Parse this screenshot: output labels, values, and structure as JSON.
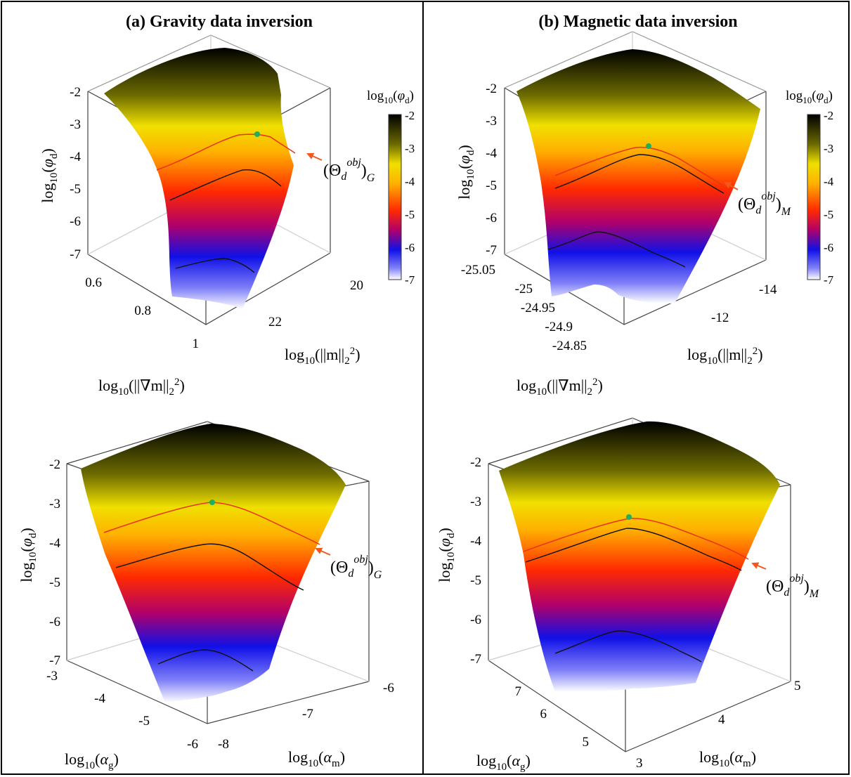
{
  "panels": [
    {
      "title": "(a) Gravity data inversion"
    },
    {
      "title": "(b) Magnetic data inversion"
    }
  ],
  "colors": {
    "frame": "#000000",
    "target_line": "#e8341c",
    "contour": "#111111",
    "marker": "#1fae62",
    "arrow": "#f25a1c"
  },
  "chart_data": [
    {
      "type": "surface",
      "panel": "(a)",
      "zlabel": "log10(φd)",
      "xlabel": "log10(||∇m||₂²)",
      "ylabel": "log10(||m||₂²)",
      "zticks": [
        "-2",
        "-3",
        "-4",
        "-5",
        "-6",
        "-7"
      ],
      "xticks": [
        "0.6",
        "0.8",
        "1"
      ],
      "yticks": [
        "20",
        "22"
      ],
      "zlim": [
        -7,
        -2
      ],
      "colorbar": {
        "label": "log10(φd)",
        "ticks": [
          "-2",
          "-3",
          "-4",
          "-5",
          "-6",
          "-7"
        ],
        "colormap": "white-blue-red-yellow-black"
      },
      "annotation": "(Θd^obj)G",
      "target_contour": -3.4,
      "black_contours": [
        -4.3,
        -6.5
      ],
      "optimum_point": {
        "z": -3.3
      }
    },
    {
      "type": "surface",
      "panel": "(b)",
      "zlabel": "log10(φd)",
      "xlabel": "log10(||∇m||₂²)",
      "ylabel": "log10(||m||₂²)",
      "zticks": [
        "-2",
        "-3",
        "-4",
        "-5",
        "-6",
        "-7"
      ],
      "xticks": [
        "-25.05",
        "-25",
        "-24.95",
        "-24.9",
        "-24.85"
      ],
      "yticks": [
        "-14",
        "-12"
      ],
      "zlim": [
        -7,
        -2
      ],
      "colorbar": {
        "label": "log10(φd)",
        "ticks": [
          "-2",
          "-3",
          "-4",
          "-5",
          "-6",
          "-7"
        ],
        "colormap": "white-blue-red-yellow-black"
      },
      "annotation": "(Θd^obj)M",
      "target_contour": -3.9,
      "black_contours": [
        -4.2,
        -6.4
      ],
      "optimum_point": {
        "z": -3.8
      }
    },
    {
      "type": "surface",
      "panel": "(a)",
      "zlabel": "log10(φd)",
      "xlabel": "log10(αg)",
      "ylabel": "log10(αm)",
      "zticks": [
        "-2",
        "-3",
        "-4",
        "-5",
        "-6",
        "-7"
      ],
      "xticks": [
        "-3",
        "-4",
        "-5",
        "-6"
      ],
      "yticks": [
        "-8",
        "-7",
        "-6"
      ],
      "zlim": [
        -7,
        -2
      ],
      "annotation": "(Θd^obj)G",
      "target_contour": -3.2,
      "black_contours": [
        -4.1,
        -6.6
      ],
      "optimum_point": {
        "z": -3.1
      }
    },
    {
      "type": "surface",
      "panel": "(b)",
      "zlabel": "log10(φd)",
      "xlabel": "log10(αg)",
      "ylabel": "log10(αm)",
      "zticks": [
        "-2",
        "-3",
        "-4",
        "-5",
        "-6",
        "-7"
      ],
      "xticks": [
        "7",
        "6",
        "5"
      ],
      "yticks": [
        "3",
        "4",
        "5"
      ],
      "zlim": [
        -7,
        -2
      ],
      "annotation": "(Θd^obj)M",
      "target_contour": -3.5,
      "black_contours": [
        -3.8,
        -6.4
      ],
      "optimum_point": {
        "z": -3.4
      }
    }
  ]
}
